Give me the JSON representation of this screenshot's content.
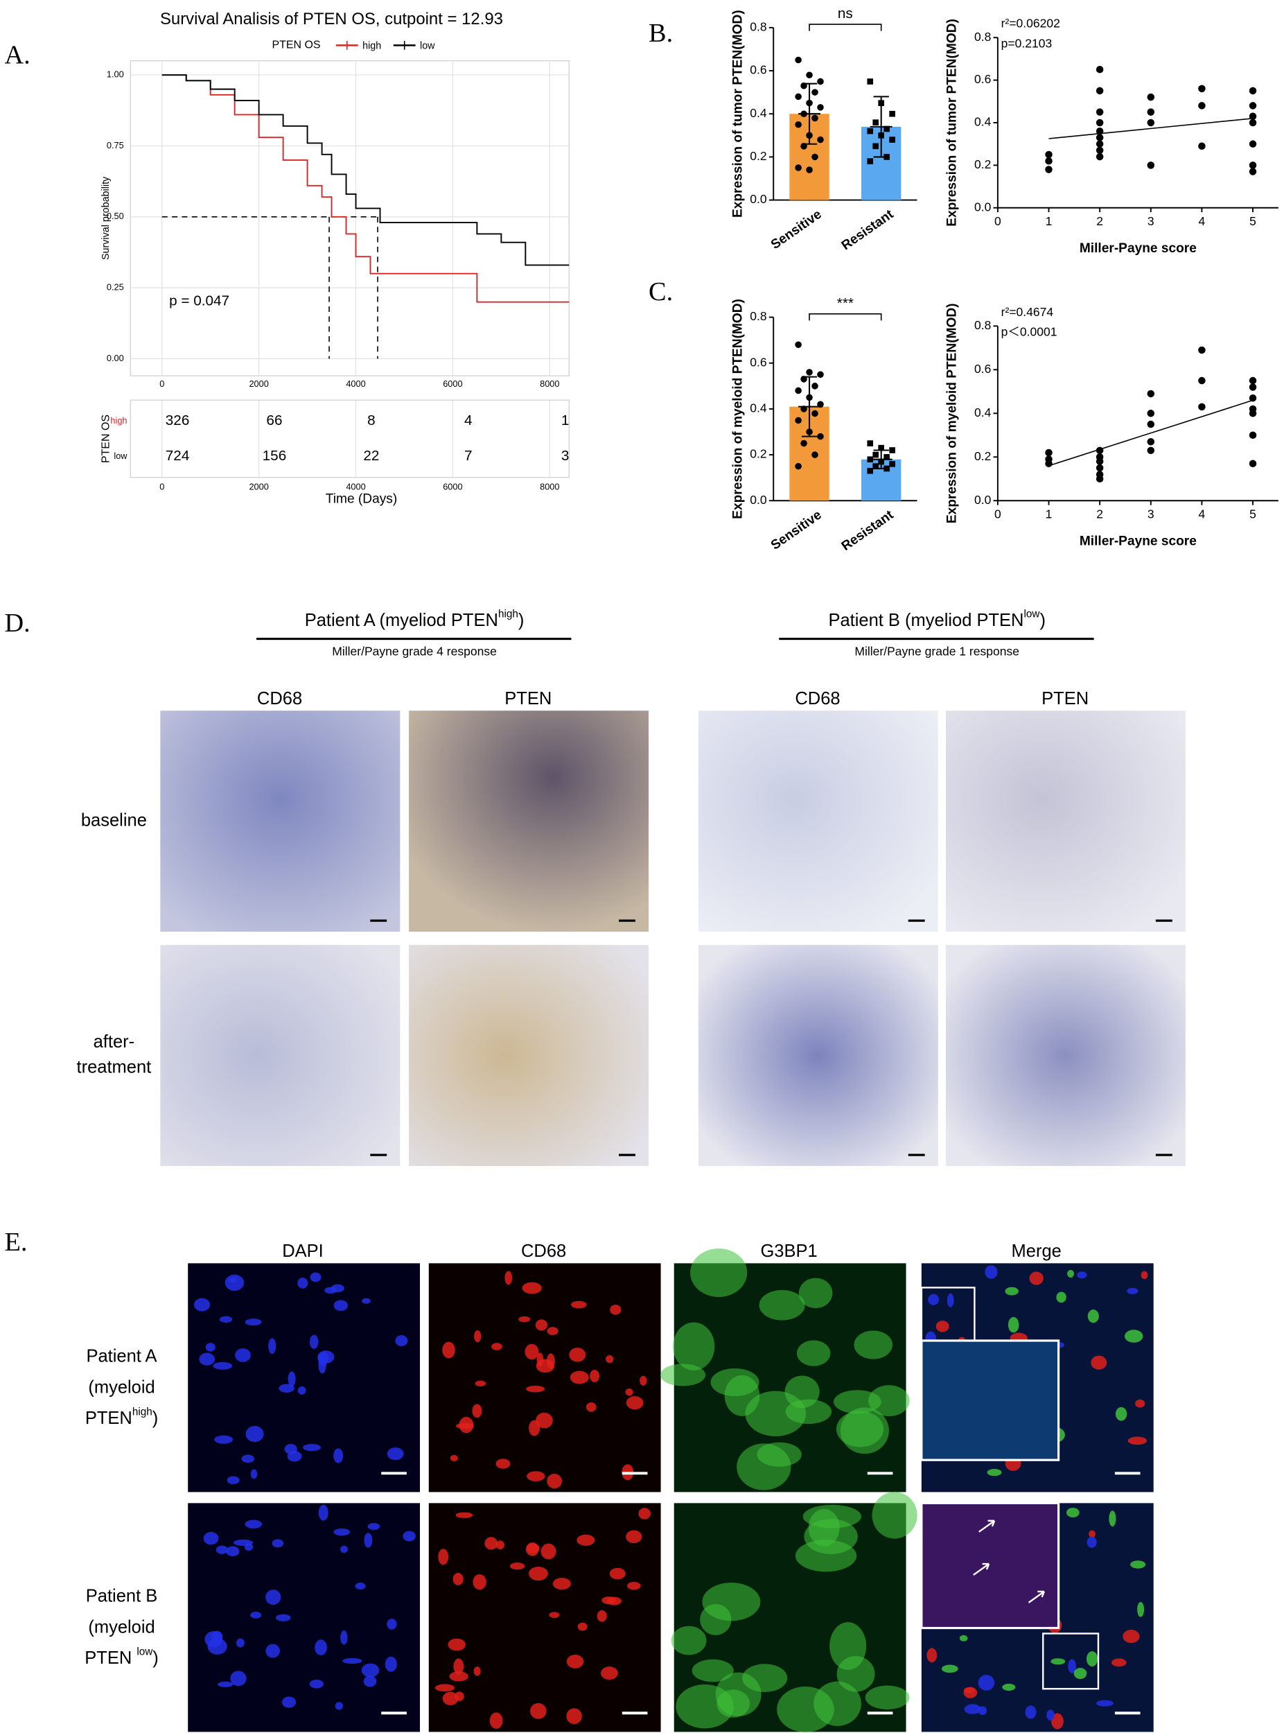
{
  "panel_labels": [
    "A.",
    "B.",
    "C.",
    "D.",
    "E."
  ],
  "chart_data": [
    {
      "type": "step",
      "title": "Survival Analisis of PTEN OS, cutpoint = 12.93",
      "legend_title": "PTEN OS",
      "ylabel": "Survival probability",
      "xlabel": "Time (Days)",
      "annotation": "p = 0.047",
      "grid": true,
      "series": [
        {
          "name": "high",
          "color": "#d62728",
          "x": [
            0,
            500,
            1000,
            1500,
            2000,
            2500,
            3000,
            3300,
            3500,
            3800,
            4000,
            4300,
            6500,
            8400
          ],
          "values": [
            1.0,
            0.98,
            0.93,
            0.86,
            0.78,
            0.7,
            0.61,
            0.57,
            0.5,
            0.44,
            0.36,
            0.3,
            0.2,
            0.2
          ]
        },
        {
          "name": "low",
          "color": "#000000",
          "x": [
            0,
            500,
            1000,
            1500,
            2000,
            2500,
            3000,
            3300,
            3500,
            3800,
            4000,
            4500,
            6500,
            7000,
            7500,
            8400
          ],
          "values": [
            1.0,
            0.98,
            0.95,
            0.91,
            0.86,
            0.82,
            0.76,
            0.72,
            0.65,
            0.58,
            0.53,
            0.48,
            0.44,
            0.41,
            0.33,
            0.33
          ]
        }
      ],
      "median_survival": {
        "y": 0.5,
        "x": [
          3450,
          4450
        ]
      },
      "risk_table": {
        "title": "PTEN OS",
        "rows": [
          [
            326,
            66,
            8,
            4,
            1
          ],
          [
            724,
            156,
            22,
            7,
            3
          ]
        ]
      },
      "xlim": [
        -650,
        8400
      ],
      "xticks": [
        0,
        2000,
        4000,
        6000,
        8000
      ],
      "ylim": [
        -0.06,
        1.05
      ],
      "yticks": [
        {
          "value": 0,
          "label": "0.00"
        },
        0.25,
        {
          "value": 0.5,
          "label": "0.50"
        },
        0.75,
        {
          "value": 1,
          "label": "1.00"
        }
      ]
    },
    {
      "type": "bar",
      "ylabel": "Expression of tumor PTEN(MOD)",
      "categories": [
        "Sensitive",
        "Resistant"
      ],
      "values": [
        0.4,
        0.34
      ],
      "errors": [
        0.14,
        0.14
      ],
      "colors": [
        "#f29a3a",
        "#5aa9f0"
      ],
      "significance": "ns",
      "points": [
        [
          0.65,
          0.58,
          0.55,
          0.53,
          0.5,
          0.48,
          0.45,
          0.43,
          0.4,
          0.38,
          0.35,
          0.3,
          0.28,
          0.25,
          0.2,
          0.15,
          0.14
        ],
        [
          0.55,
          0.45,
          0.4,
          0.36,
          0.33,
          0.32,
          0.3,
          0.28,
          0.25,
          0.2,
          0.18
        ]
      ],
      "ylim": [
        0,
        0.8
      ],
      "yticks": [
        {
          "value": 0,
          "label": "0.0"
        },
        0.2,
        0.4,
        0.6,
        0.8
      ]
    },
    {
      "type": "scatter",
      "xlabel": "Miller-Payne score",
      "ylabel": "Expression of tumor PTEN(MOD)",
      "color": "#000000",
      "annotations": [
        "r²=0.06202",
        "p=0.2103"
      ],
      "x": [
        1,
        1,
        1,
        2,
        2,
        2,
        2,
        2,
        2,
        2,
        2,
        2,
        3,
        3,
        3,
        3,
        4,
        4,
        4,
        5,
        5,
        5,
        5,
        5,
        5,
        5
      ],
      "values": [
        0.25,
        0.22,
        0.18,
        0.65,
        0.55,
        0.45,
        0.4,
        0.36,
        0.33,
        0.3,
        0.27,
        0.24,
        0.52,
        0.45,
        0.4,
        0.2,
        0.56,
        0.48,
        0.29,
        0.55,
        0.48,
        0.43,
        0.4,
        0.3,
        0.2,
        0.17
      ],
      "fit": {
        "x": [
          1,
          5
        ],
        "values": [
          0.325,
          0.42
        ]
      },
      "xlim": [
        0,
        5.5
      ],
      "xticks": [
        0,
        1,
        2,
        3,
        4,
        5
      ],
      "ylim": [
        0,
        0.8
      ],
      "yticks": [
        {
          "value": 0,
          "label": "0.0"
        },
        0.2,
        0.4,
        0.6,
        0.8
      ]
    },
    {
      "type": "bar",
      "ylabel": "Expression of myeloid PTEN(MOD)",
      "categories": [
        "Sensitive",
        "Resistant"
      ],
      "values": [
        0.41,
        0.18
      ],
      "errors": [
        0.13,
        0.04
      ],
      "colors": [
        "#f29a3a",
        "#5aa9f0"
      ],
      "significance": "***",
      "points": [
        [
          0.68,
          0.56,
          0.55,
          0.53,
          0.5,
          0.48,
          0.45,
          0.42,
          0.4,
          0.38,
          0.35,
          0.3,
          0.28,
          0.25,
          0.2,
          0.15
        ],
        [
          0.25,
          0.23,
          0.22,
          0.2,
          0.19,
          0.18,
          0.17,
          0.16,
          0.15,
          0.14,
          0.13
        ]
      ],
      "ylim": [
        0,
        0.8
      ],
      "yticks": [
        {
          "value": 0,
          "label": "0.0"
        },
        0.2,
        0.4,
        0.6,
        0.8
      ]
    },
    {
      "type": "scatter",
      "xlabel": "Miller-Payne score",
      "ylabel": "Expression of myeloid PTEN(MOD)",
      "color": "#000000",
      "annotations": [
        "r²=0.4674",
        "p＜0.0001"
      ],
      "x": [
        1,
        1,
        1,
        2,
        2,
        2,
        2,
        2,
        2,
        3,
        3,
        3,
        3,
        3,
        4,
        4,
        4,
        5,
        5,
        5,
        5,
        5,
        5,
        5
      ],
      "values": [
        0.22,
        0.19,
        0.17,
        0.23,
        0.2,
        0.18,
        0.15,
        0.12,
        0.1,
        0.49,
        0.4,
        0.35,
        0.27,
        0.23,
        0.69,
        0.55,
        0.43,
        0.55,
        0.52,
        0.47,
        0.42,
        0.4,
        0.3,
        0.17
      ],
      "fit": {
        "x": [
          1,
          5
        ],
        "values": [
          0.16,
          0.46
        ]
      },
      "xlim": [
        0,
        5.5
      ],
      "xticks": [
        0,
        1,
        2,
        3,
        4,
        5
      ],
      "ylim": [
        0,
        0.8
      ],
      "yticks": [
        {
          "value": 0,
          "label": "0.0"
        },
        0.2,
        0.4,
        0.6,
        0.8
      ]
    }
  ],
  "panel_d": {
    "groups": [
      {
        "title": "Patient A (myeliod PTEN",
        "sup": "high",
        "tail": ")",
        "subtitle": "Miller/Payne grade 4 response"
      },
      {
        "title": "Patient B (myeliod PTEN",
        "sup": "low",
        "tail": ")",
        "subtitle": "Miller/Payne grade 1 response"
      }
    ],
    "columns": [
      "CD68",
      "PTEN",
      "CD68",
      "PTEN"
    ],
    "rows": [
      [
        "baseline"
      ],
      [
        "after-",
        "treatment"
      ]
    ]
  },
  "panel_e": {
    "columns": [
      "DAPI",
      "CD68",
      "G3BP1",
      "Merge"
    ],
    "rows": [
      {
        "lines": [
          "Patient A",
          "(myeloid"
        ],
        "last": {
          "text": "PTEN",
          "sup": "high",
          "tail": ")"
        }
      },
      {
        "lines": [
          "Patient B",
          "(myeloid"
        ],
        "last": {
          "text": "PTEN ",
          "sup": "low",
          "tail": ")"
        }
      }
    ]
  }
}
